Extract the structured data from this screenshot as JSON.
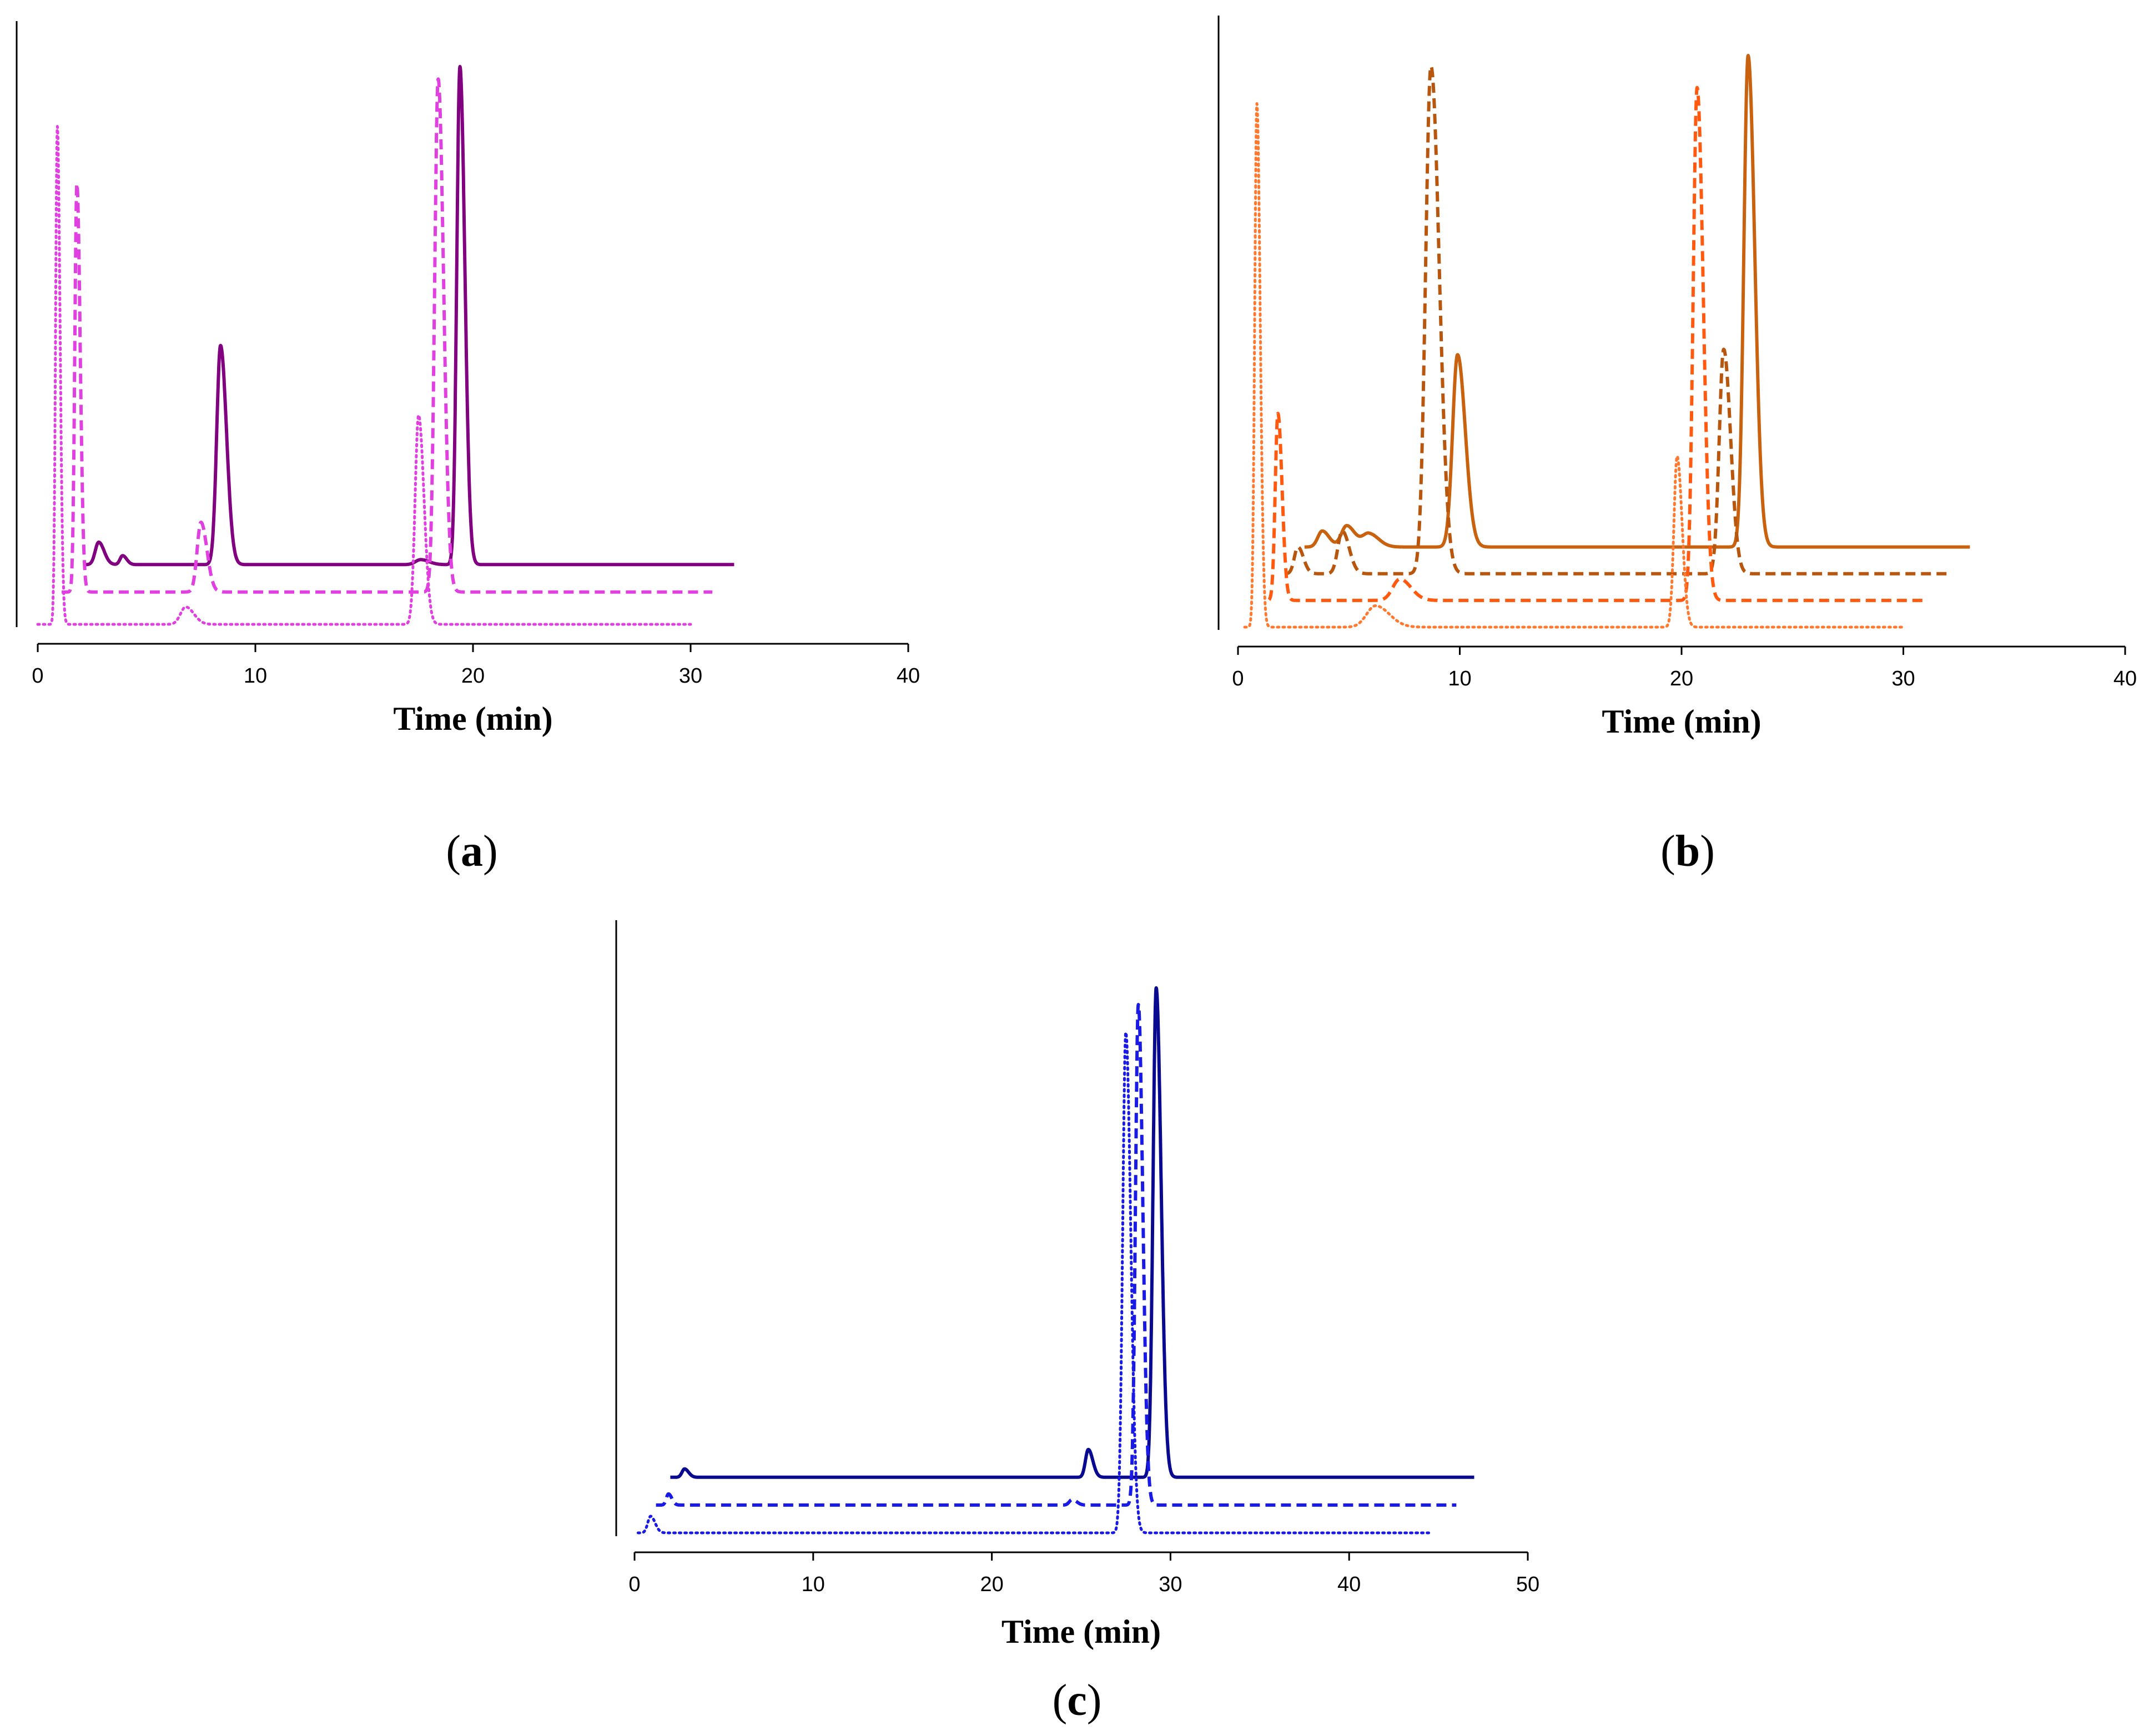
{
  "chart_data": [
    {
      "id": "a",
      "type": "line",
      "panel_label": "a",
      "xlabel": "Time (min)",
      "ylabel": "",
      "xlim": [
        0,
        40
      ],
      "x_ticks": [
        0,
        10,
        20,
        30,
        40
      ],
      "x_tick_labels": [
        "0",
        "10",
        "20",
        "30",
        "40"
      ],
      "grid": false,
      "series": [
        {
          "name": "solid",
          "style": "solid",
          "color": "#800080",
          "x_range": [
            2.1,
            32
          ],
          "baseline": 0.12,
          "peaks": [
            {
              "rt": 2.8,
              "height": 0.045,
              "width": 0.2
            },
            {
              "rt": 3.9,
              "height": 0.018,
              "width": 0.15
            },
            {
              "rt": 8.4,
              "height": 0.44,
              "width": 0.22
            },
            {
              "rt": 17.6,
              "height": 0.01,
              "width": 0.3
            },
            {
              "rt": 19.4,
              "height": 1.0,
              "width": 0.18
            }
          ]
        },
        {
          "name": "dashed",
          "style": "dashed",
          "color": "#e040e0",
          "x_range": [
            1.1,
            31
          ],
          "baseline": 0.065,
          "peaks": [
            {
              "rt": 1.8,
              "height": 0.82,
              "width": 0.12
            },
            {
              "rt": 7.5,
              "height": 0.14,
              "width": 0.22
            },
            {
              "rt": 18.4,
              "height": 1.03,
              "width": 0.2
            }
          ]
        },
        {
          "name": "dotted",
          "style": "dotted",
          "color": "#e040e0",
          "x_range": [
            0,
            30
          ],
          "baseline": 0.0,
          "peaks": [
            {
              "rt": 0.9,
              "height": 1.0,
              "width": 0.1
            },
            {
              "rt": 6.8,
              "height": 0.035,
              "width": 0.3
            },
            {
              "rt": 17.5,
              "height": 0.42,
              "width": 0.2
            }
          ]
        }
      ]
    },
    {
      "id": "b",
      "type": "line",
      "panel_label": "b",
      "xlabel": "Time (min)",
      "ylabel": "",
      "xlim": [
        0,
        40
      ],
      "x_ticks": [
        0,
        10,
        20,
        30,
        40
      ],
      "x_tick_labels": [
        "0",
        "10",
        "20",
        "30",
        "40"
      ],
      "grid": false,
      "series": [
        {
          "name": "solid",
          "style": "solid",
          "color": "#c8620f",
          "x_range": [
            3.0,
            33
          ],
          "baseline": 0.15,
          "peaks": [
            {
              "rt": 3.8,
              "height": 0.03,
              "width": 0.25
            },
            {
              "rt": 4.9,
              "height": 0.04,
              "width": 0.3
            },
            {
              "rt": 5.9,
              "height": 0.025,
              "width": 0.35
            },
            {
              "rt": 9.9,
              "height": 0.36,
              "width": 0.28
            },
            {
              "rt": 23.0,
              "height": 0.92,
              "width": 0.24
            }
          ]
        },
        {
          "name": "dashed-dark",
          "style": "dashed",
          "color": "#b8560d",
          "x_range": [
            2.2,
            32
          ],
          "baseline": 0.1,
          "peaks": [
            {
              "rt": 2.7,
              "height": 0.05,
              "width": 0.2
            },
            {
              "rt": 4.7,
              "height": 0.08,
              "width": 0.25
            },
            {
              "rt": 8.7,
              "height": 0.95,
              "width": 0.3
            },
            {
              "rt": 21.9,
              "height": 0.42,
              "width": 0.25
            }
          ]
        },
        {
          "name": "dashed-light",
          "style": "dashed",
          "color": "#ff5a10",
          "x_range": [
            1.4,
            31
          ],
          "baseline": 0.05,
          "peaks": [
            {
              "rt": 1.8,
              "height": 0.35,
              "width": 0.15
            },
            {
              "rt": 7.3,
              "height": 0.04,
              "width": 0.4
            },
            {
              "rt": 20.7,
              "height": 0.96,
              "width": 0.22
            }
          ]
        },
        {
          "name": "dotted",
          "style": "dotted",
          "color": "#ff7a30",
          "x_range": [
            0.3,
            30
          ],
          "baseline": 0.0,
          "peaks": [
            {
              "rt": 0.85,
              "height": 0.98,
              "width": 0.12
            },
            {
              "rt": 6.2,
              "height": 0.04,
              "width": 0.5
            },
            {
              "rt": 19.8,
              "height": 0.32,
              "width": 0.18
            }
          ]
        }
      ]
    },
    {
      "id": "c",
      "type": "line",
      "panel_label": "c",
      "xlabel": "Time (min)",
      "ylabel": "",
      "xlim": [
        0,
        50
      ],
      "x_ticks": [
        0,
        10,
        20,
        30,
        40,
        50
      ],
      "x_tick_labels": [
        "0",
        "10",
        "20",
        "30",
        "40",
        "50"
      ],
      "grid": false,
      "series": [
        {
          "name": "solid",
          "style": "solid",
          "color": "#0a0a90",
          "x_range": [
            2.0,
            47
          ],
          "baseline": 0.1,
          "peaks": [
            {
              "rt": 2.8,
              "height": 0.015,
              "width": 0.18
            },
            {
              "rt": 25.4,
              "height": 0.05,
              "width": 0.2
            },
            {
              "rt": 29.2,
              "height": 0.88,
              "width": 0.22
            }
          ]
        },
        {
          "name": "dashed",
          "style": "dashed",
          "color": "#1a1ae6",
          "x_range": [
            1.2,
            46
          ],
          "baseline": 0.05,
          "peaks": [
            {
              "rt": 1.9,
              "height": 0.02,
              "width": 0.15
            },
            {
              "rt": 24.5,
              "height": 0.01,
              "width": 0.2
            },
            {
              "rt": 28.2,
              "height": 0.9,
              "width": 0.2
            }
          ]
        },
        {
          "name": "dotted",
          "style": "dotted",
          "color": "#1a1ae6",
          "x_range": [
            0.2,
            44.5
          ],
          "baseline": 0.0,
          "peaks": [
            {
              "rt": 0.9,
              "height": 0.03,
              "width": 0.2
            },
            {
              "rt": 27.5,
              "height": 0.9,
              "width": 0.22
            }
          ]
        }
      ]
    }
  ]
}
